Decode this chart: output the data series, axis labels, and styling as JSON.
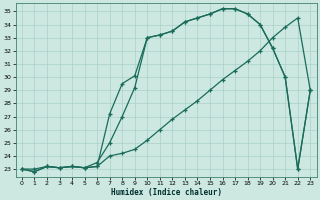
{
  "xlabel": "Humidex (Indice chaleur)",
  "bg_color": "#cce8e0",
  "line_color": "#1a6b5a",
  "grid_color": "#aad0c8",
  "xlim": [
    -0.5,
    23.5
  ],
  "ylim": [
    22.4,
    35.6
  ],
  "xticks": [
    0,
    1,
    2,
    3,
    4,
    5,
    6,
    7,
    8,
    9,
    10,
    11,
    12,
    13,
    14,
    15,
    16,
    17,
    18,
    19,
    20,
    21,
    22,
    23
  ],
  "yticks": [
    23,
    24,
    25,
    26,
    27,
    28,
    29,
    30,
    31,
    32,
    33,
    34,
    35
  ],
  "line1_x": [
    0,
    1,
    2,
    3,
    4,
    5,
    6,
    7,
    8,
    9,
    10,
    11,
    12,
    13,
    14,
    15,
    16,
    17,
    18,
    19,
    20,
    21,
    22,
    23
  ],
  "line1_y": [
    23,
    22.8,
    23.2,
    23.1,
    23.2,
    23.1,
    23.2,
    27.2,
    29.5,
    30.1,
    33.0,
    33.2,
    33.5,
    34.2,
    34.5,
    34.8,
    35.2,
    35.2,
    34.8,
    34.0,
    32.2,
    30.0,
    23.0,
    29.0
  ],
  "line2_x": [
    0,
    1,
    2,
    3,
    4,
    5,
    6,
    7,
    8,
    9,
    10,
    11,
    12,
    13,
    14,
    15,
    16,
    17,
    18,
    19,
    20,
    21,
    22,
    23
  ],
  "line2_y": [
    23,
    22.8,
    23.2,
    23.1,
    23.2,
    23.1,
    23.5,
    25.0,
    27.0,
    29.2,
    33.0,
    33.2,
    33.5,
    34.2,
    34.5,
    34.8,
    35.2,
    35.2,
    34.8,
    34.0,
    32.2,
    30.0,
    23.0,
    29.0
  ],
  "line3_x": [
    0,
    1,
    2,
    3,
    4,
    5,
    6,
    7,
    8,
    9,
    10,
    11,
    12,
    13,
    14,
    15,
    16,
    17,
    18,
    19,
    20,
    21,
    22,
    23
  ],
  "line3_y": [
    23,
    23.0,
    23.2,
    23.1,
    23.2,
    23.1,
    23.2,
    24.0,
    24.2,
    24.5,
    25.2,
    26.0,
    26.8,
    27.5,
    28.2,
    29.0,
    29.8,
    30.5,
    31.2,
    32.0,
    33.0,
    33.8,
    34.5,
    29.0
  ]
}
